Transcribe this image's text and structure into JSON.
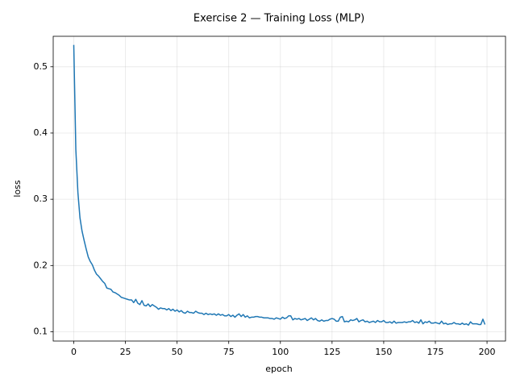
{
  "chart_data": {
    "type": "line",
    "title": "Exercise 2 — Training Loss (MLP)",
    "x_label": "epoch",
    "y_label": "loss",
    "x": [
      0,
      1,
      2,
      3,
      4,
      5,
      6,
      7,
      8,
      9,
      10,
      11,
      12,
      13,
      14,
      15,
      16,
      17,
      18,
      19,
      20,
      21,
      22,
      23,
      24,
      25,
      26,
      27,
      28,
      29,
      30,
      31,
      32,
      33,
      34,
      35,
      36,
      37,
      38,
      39,
      40,
      41,
      42,
      43,
      44,
      45,
      46,
      47,
      48,
      49,
      50,
      51,
      52,
      53,
      54,
      55,
      56,
      57,
      58,
      59,
      60,
      61,
      62,
      63,
      64,
      65,
      66,
      67,
      68,
      69,
      70,
      71,
      72,
      73,
      74,
      75,
      76,
      77,
      78,
      79,
      80,
      81,
      82,
      83,
      84,
      85,
      86,
      87,
      88,
      89,
      90,
      91,
      92,
      93,
      94,
      95,
      96,
      97,
      98,
      99,
      100,
      101,
      102,
      103,
      104,
      105,
      106,
      107,
      108,
      109,
      110,
      111,
      112,
      113,
      114,
      115,
      116,
      117,
      118,
      119,
      120,
      121,
      122,
      123,
      124,
      125,
      126,
      127,
      128,
      129,
      130,
      131,
      132,
      133,
      134,
      135,
      136,
      137,
      138,
      139,
      140,
      141,
      142,
      143,
      144,
      145,
      146,
      147,
      148,
      149,
      150,
      151,
      152,
      153,
      154,
      155,
      156,
      157,
      158,
      159,
      160,
      161,
      162,
      163,
      164,
      165,
      166,
      167,
      168,
      169,
      170,
      171,
      172,
      173,
      174,
      175,
      176,
      177,
      178,
      179,
      180,
      181,
      182,
      183,
      184,
      185,
      186,
      187,
      188,
      189,
      190,
      191,
      192,
      193,
      194,
      195,
      196,
      197,
      198,
      199
    ],
    "series": [
      {
        "name": "loss",
        "color": "#1f77b4",
        "values": [
          0.533,
          0.375,
          0.31,
          0.272,
          0.252,
          0.238,
          0.225,
          0.213,
          0.206,
          0.201,
          0.193,
          0.187,
          0.184,
          0.18,
          0.176,
          0.173,
          0.166,
          0.165,
          0.164,
          0.16,
          0.159,
          0.157,
          0.155,
          0.152,
          0.151,
          0.15,
          0.149,
          0.148,
          0.148,
          0.144,
          0.149,
          0.143,
          0.141,
          0.147,
          0.14,
          0.139,
          0.142,
          0.138,
          0.141,
          0.139,
          0.137,
          0.134,
          0.136,
          0.135,
          0.135,
          0.133,
          0.135,
          0.132,
          0.134,
          0.131,
          0.133,
          0.13,
          0.132,
          0.129,
          0.128,
          0.131,
          0.129,
          0.129,
          0.128,
          0.131,
          0.129,
          0.128,
          0.128,
          0.126,
          0.128,
          0.126,
          0.127,
          0.126,
          0.127,
          0.125,
          0.127,
          0.125,
          0.126,
          0.124,
          0.124,
          0.126,
          0.123,
          0.125,
          0.122,
          0.125,
          0.127,
          0.123,
          0.126,
          0.122,
          0.124,
          0.121,
          0.122,
          0.122,
          0.123,
          0.123,
          0.122,
          0.122,
          0.121,
          0.121,
          0.121,
          0.12,
          0.12,
          0.119,
          0.121,
          0.12,
          0.119,
          0.122,
          0.12,
          0.121,
          0.124,
          0.124,
          0.118,
          0.12,
          0.119,
          0.12,
          0.118,
          0.119,
          0.12,
          0.117,
          0.119,
          0.121,
          0.118,
          0.12,
          0.117,
          0.116,
          0.118,
          0.116,
          0.117,
          0.117,
          0.119,
          0.12,
          0.119,
          0.116,
          0.116,
          0.122,
          0.123,
          0.115,
          0.116,
          0.115,
          0.118,
          0.117,
          0.118,
          0.12,
          0.115,
          0.117,
          0.118,
          0.115,
          0.116,
          0.114,
          0.115,
          0.116,
          0.114,
          0.117,
          0.115,
          0.115,
          0.117,
          0.114,
          0.114,
          0.115,
          0.113,
          0.116,
          0.113,
          0.114,
          0.114,
          0.114,
          0.115,
          0.114,
          0.115,
          0.115,
          0.117,
          0.114,
          0.115,
          0.113,
          0.118,
          0.112,
          0.115,
          0.114,
          0.116,
          0.113,
          0.113,
          0.114,
          0.113,
          0.112,
          0.116,
          0.112,
          0.113,
          0.111,
          0.112,
          0.112,
          0.114,
          0.112,
          0.112,
          0.111,
          0.113,
          0.111,
          0.112,
          0.11,
          0.115,
          0.112,
          0.112,
          0.112,
          0.111,
          0.111,
          0.119,
          0.111
        ]
      }
    ],
    "xlim": [
      -9.95,
      208.95
    ],
    "ylim": [
      0.086,
      0.546
    ],
    "xticks": [
      0,
      25,
      50,
      75,
      100,
      125,
      150,
      175,
      200
    ],
    "yticks": [
      0.1,
      0.2,
      0.3,
      0.4,
      0.5
    ],
    "grid": true
  }
}
